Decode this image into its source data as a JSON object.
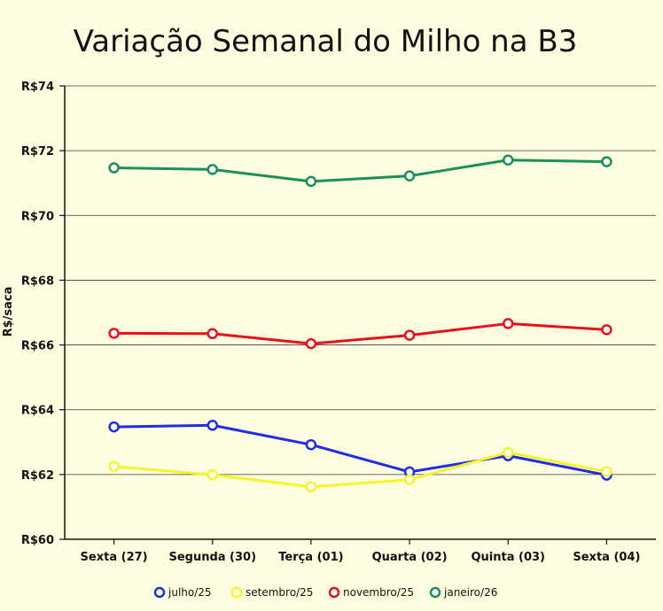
{
  "chart_data": {
    "type": "line",
    "title": "Variação Semanal do Milho na B3",
    "xlabel": "",
    "ylabel": "R$/saca",
    "categories": [
      "Sexta (27)",
      "Segunda (30)",
      "Terça (01)",
      "Quarta (02)",
      "Quinta (03)",
      "Sexta (04)"
    ],
    "ylim": [
      60,
      74
    ],
    "yticks": [
      60,
      62,
      64,
      66,
      68,
      70,
      72,
      74
    ],
    "ytick_labels": [
      "R$60",
      "R$62",
      "R$64",
      "R$66",
      "R$68",
      "R$70",
      "R$72",
      "R$74"
    ],
    "grid": true,
    "legend_position": "bottom",
    "series": [
      {
        "name": "julho/25",
        "color": "#1f2ee6",
        "values": [
          63.47,
          63.52,
          62.92,
          62.08,
          62.58,
          61.98
        ]
      },
      {
        "name": "setembro/25",
        "color": "#f5f52a",
        "values": [
          62.25,
          61.99,
          61.62,
          61.84,
          62.68,
          62.09
        ]
      },
      {
        "name": "novembro/25",
        "color": "#e8101e",
        "values": [
          66.36,
          66.35,
          66.04,
          66.3,
          66.66,
          66.47
        ]
      },
      {
        "name": "janeiro/26",
        "color": "#1a8f5a",
        "values": [
          71.47,
          71.42,
          71.05,
          71.22,
          71.71,
          71.66
        ]
      }
    ]
  }
}
